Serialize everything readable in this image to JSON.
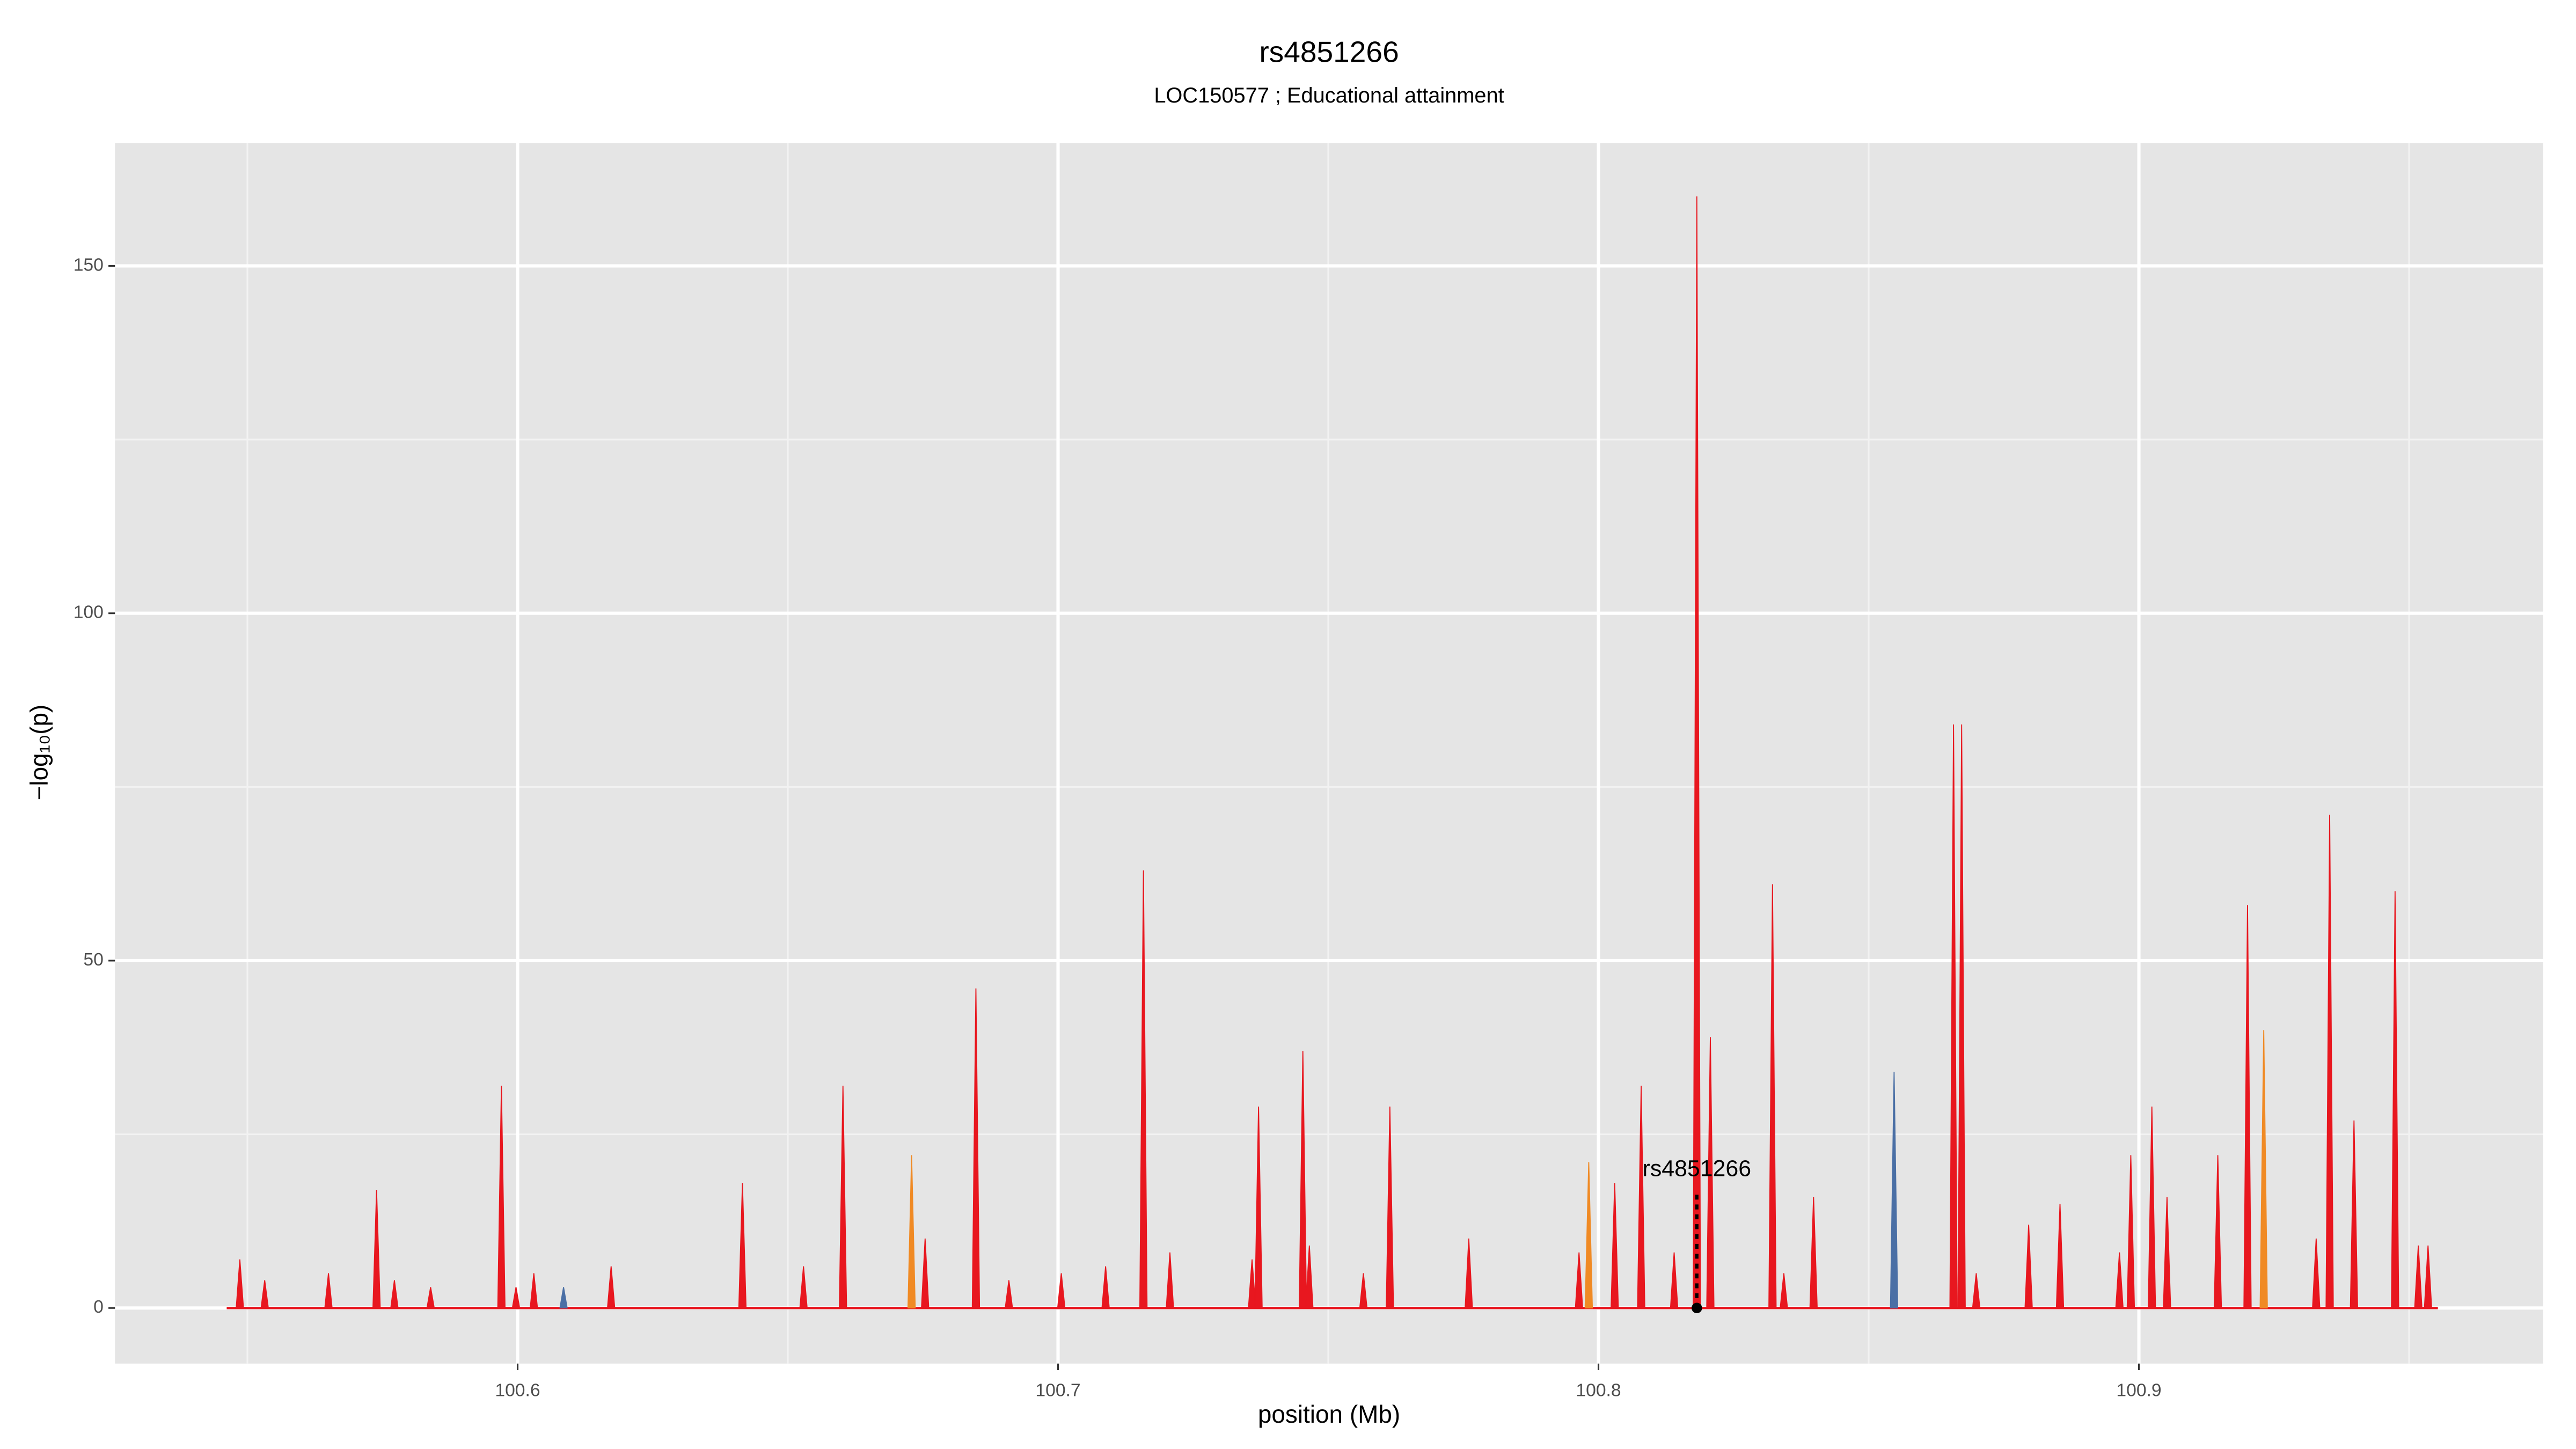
{
  "chart_data": {
    "type": "area",
    "title": "rs4851266",
    "subtitle": "LOC150577 ; Educational attainment",
    "xlabel": "position (Mb)",
    "ylabel": "−log₁₀(p)",
    "xlim": [
      100.5255,
      100.9748
    ],
    "ylim": [
      -8.0,
      167.7
    ],
    "xticks": [
      100.6,
      100.7,
      100.8,
      100.9
    ],
    "yticks": [
      0,
      50,
      100,
      150
    ],
    "grid": true,
    "series": [
      {
        "color": "#e8171f",
        "x": [
          100.5486,
          100.5532,
          100.565,
          100.5739,
          100.5772,
          100.5839,
          100.597,
          100.5997,
          100.603,
          100.6173,
          100.6416,
          100.6529,
          100.6602,
          100.6754,
          100.6848,
          100.6909,
          100.7006,
          100.7088,
          100.7158,
          100.7207,
          100.7359,
          100.7371,
          100.7453,
          100.7465,
          100.7565,
          100.7614,
          100.776,
          100.7964,
          100.803,
          100.8079,
          100.814,
          100.8182,
          100.8207,
          100.8322,
          100.8343,
          100.8398,
          100.8657,
          100.8672,
          100.8699,
          100.8796,
          100.8854,
          100.8964,
          100.8985,
          100.9024,
          100.9052,
          100.9146,
          100.9201,
          100.9328,
          100.9353,
          100.9398,
          100.9474,
          100.9517,
          100.9535
        ],
        "values": [
          7,
          4,
          5,
          17,
          4,
          3,
          32,
          3,
          5,
          6,
          18,
          6,
          32,
          10,
          46,
          4,
          5,
          6,
          63,
          8,
          7,
          29,
          37,
          9,
          5,
          29,
          10,
          8,
          18,
          32,
          8,
          160,
          39,
          61,
          5,
          16,
          84,
          84,
          5,
          12,
          15,
          8,
          22,
          29,
          16,
          22,
          58,
          10,
          71,
          27,
          60,
          9,
          9
        ]
      },
      {
        "color": "#f08a24",
        "x": [
          100.6729,
          100.7982,
          100.9231
        ],
        "values": [
          22,
          21,
          40
        ]
      },
      {
        "color": "#4a6fa5",
        "x": [
          100.6085,
          100.8547
        ],
        "values": [
          3,
          34
        ]
      }
    ],
    "annotation": {
      "label": "rs4851266",
      "x": 100.8182,
      "y": 0
    }
  }
}
